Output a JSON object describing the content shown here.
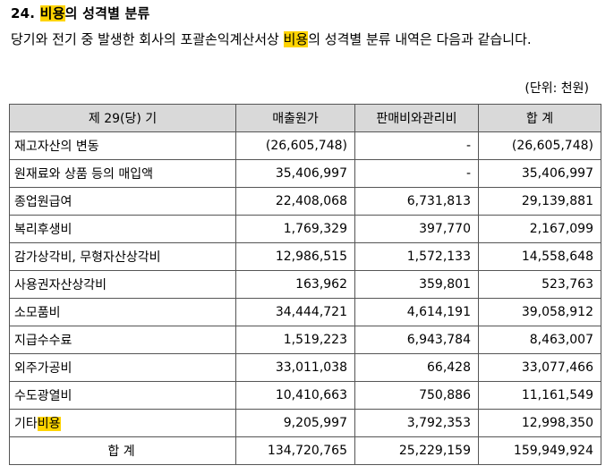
{
  "heading": {
    "number": "24.",
    "highlight": "비용",
    "rest": "의 성격별 분류"
  },
  "paragraph": {
    "before": "당기와 전기 중 발생한 회사의 포괄손익계산서상 ",
    "highlight": "비용",
    "after": "의 성격별 분류 내역은 다음과 같습니다."
  },
  "unit": "(단위: 천원)",
  "table": {
    "headers": [
      "제 29(당) 기",
      "매출원가",
      "판매비와관리비",
      "합 계"
    ],
    "rows": [
      {
        "label": "재고자산의 변동",
        "cost_of_sales": "(26,605,748)",
        "sga": "-",
        "total": "(26,605,748)"
      },
      {
        "label": "원재료와 상품 등의 매입액",
        "cost_of_sales": "35,406,997",
        "sga": "-",
        "total": "35,406,997"
      },
      {
        "label": "종업원급여",
        "cost_of_sales": "22,408,068",
        "sga": "6,731,813",
        "total": "29,139,881"
      },
      {
        "label": "복리후생비",
        "cost_of_sales": "1,769,329",
        "sga": "397,770",
        "total": "2,167,099"
      },
      {
        "label": "감가상각비, 무형자산상각비",
        "cost_of_sales": "12,986,515",
        "sga": "1,572,133",
        "total": "14,558,648"
      },
      {
        "label": "사용권자산상각비",
        "cost_of_sales": "163,962",
        "sga": "359,801",
        "total": "523,763"
      },
      {
        "label": "소모품비",
        "cost_of_sales": "34,444,721",
        "sga": "4,614,191",
        "total": "39,058,912"
      },
      {
        "label": "지급수수료",
        "cost_of_sales": "1,519,223",
        "sga": "6,943,784",
        "total": "8,463,007"
      },
      {
        "label": "외주가공비",
        "cost_of_sales": "33,011,038",
        "sga": "66,428",
        "total": "33,077,466"
      },
      {
        "label": "수도광열비",
        "cost_of_sales": "10,410,663",
        "sga": "750,886",
        "total": "11,161,549"
      },
      {
        "label_prefix": "기타",
        "label_highlight": "비용",
        "cost_of_sales": "9,205,997",
        "sga": "3,792,353",
        "total": "12,998,350"
      }
    ],
    "total": {
      "label": "합 계",
      "cost_of_sales": "134,720,765",
      "sga": "25,229,159",
      "total": "159,949,924"
    }
  },
  "colors": {
    "highlight": "#ffd400",
    "header_bg": "#d9d9d9",
    "border": "#555555"
  }
}
